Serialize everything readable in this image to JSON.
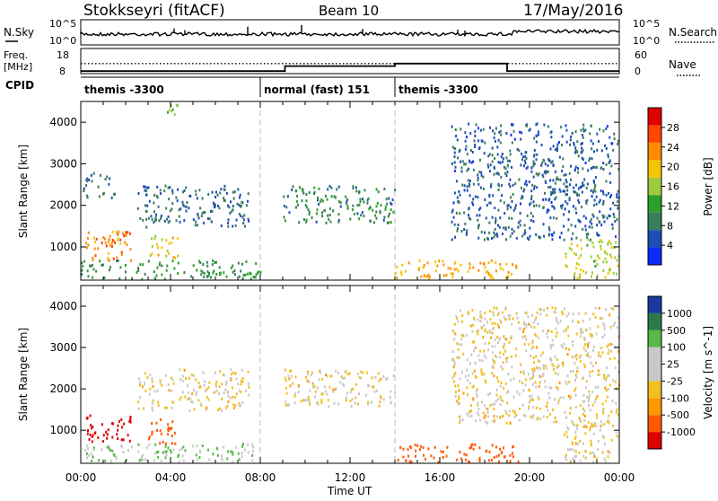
{
  "header": {
    "station": "Stokkseyri (fitACF)",
    "beam": "Beam 10",
    "date": "17/May/2016"
  },
  "aux_panel": {
    "nsky_label": "N.Sky",
    "nsky_ticks": [
      "10^5",
      "10^0"
    ],
    "nsearch_label": "N.Search",
    "freq_label": "Freq.",
    "freq_unit": "[MHz]",
    "freq_ticks": [
      "18",
      "8"
    ],
    "nave_label": "Nave",
    "nave_ticks": [
      "60",
      "0"
    ],
    "cpid_label": "CPID",
    "cpid_segments": [
      {
        "label": "themis -3300",
        "start_hour": 0,
        "end_hour": 8
      },
      {
        "label": "normal (fast) 151",
        "start_hour": 8,
        "end_hour": 14
      },
      {
        "label": "themis -3300",
        "start_hour": 14,
        "end_hour": 24
      }
    ],
    "nave_steps": [
      {
        "start_hour": 0,
        "end_hour": 9.1,
        "value": 6
      },
      {
        "start_hour": 9.1,
        "end_hour": 14,
        "value": 18
      },
      {
        "start_hour": 14,
        "end_hour": 19,
        "value": 24
      },
      {
        "start_hour": 19,
        "end_hour": 24,
        "value": 6
      }
    ],
    "freq_level_mhz": 12
  },
  "chart_data": [
    {
      "type": "heatmap",
      "title": "",
      "xlabel": "Time UT",
      "ylabel": "Slant Range [km]",
      "xlim_hours": [
        0,
        24
      ],
      "ylim_km": [
        200,
        4500
      ],
      "x_ticks": [
        "00:00",
        "04:00",
        "08:00",
        "12:00",
        "16:00",
        "20:00",
        "00:00"
      ],
      "y_ticks": [
        "1000",
        "2000",
        "3000",
        "4000"
      ],
      "colorbar": {
        "label": "Power [dB]",
        "ticks": [
          "4",
          "8",
          "12",
          "16",
          "20",
          "24",
          "28"
        ],
        "range": [
          0,
          30
        ]
      },
      "regions": [
        {
          "t0": 0.0,
          "t1": 8.0,
          "r0": 250,
          "r1": 700,
          "value": 10
        },
        {
          "t0": 0.2,
          "t1": 2.2,
          "r0": 700,
          "r1": 1400,
          "value": 22
        },
        {
          "t0": 3.0,
          "t1": 4.3,
          "r0": 700,
          "r1": 1300,
          "value": 18
        },
        {
          "t0": 0.0,
          "t1": 1.5,
          "r0": 2200,
          "r1": 2800,
          "value": 7
        },
        {
          "t0": 2.5,
          "t1": 7.5,
          "r0": 1500,
          "r1": 2500,
          "value": 7
        },
        {
          "t0": 3.8,
          "t1": 4.3,
          "r0": 4200,
          "r1": 4500,
          "value": 14
        },
        {
          "t0": 9.0,
          "t1": 14.0,
          "r0": 1600,
          "r1": 2500,
          "value": 9
        },
        {
          "t0": 14.0,
          "t1": 19.5,
          "r0": 250,
          "r1": 700,
          "value": 20
        },
        {
          "t0": 16.5,
          "t1": 24.0,
          "r0": 1200,
          "r1": 4000,
          "value": 6
        },
        {
          "t0": 21.5,
          "t1": 24.0,
          "r0": 250,
          "r1": 1200,
          "value": 16
        }
      ]
    },
    {
      "type": "heatmap",
      "title": "",
      "xlabel": "Time UT",
      "ylabel": "Slant Range [km]",
      "xlim_hours": [
        0,
        24
      ],
      "ylim_km": [
        200,
        4500
      ],
      "x_ticks": [
        "00:00",
        "04:00",
        "08:00",
        "12:00",
        "16:00",
        "20:00",
        "00:00"
      ],
      "y_ticks": [
        "1000",
        "2000",
        "3000",
        "4000"
      ],
      "colorbar": {
        "label": "Velocity [m s^-1]",
        "ticks": [
          "1000",
          "500",
          "100",
          "25",
          "-25",
          "-100",
          "-500",
          "-1000"
        ]
      },
      "regions": [
        {
          "t0": 0.0,
          "t1": 8.0,
          "r0": 250,
          "r1": 700,
          "value": 100
        },
        {
          "t0": 0.2,
          "t1": 2.2,
          "r0": 700,
          "r1": 1400,
          "value": -800
        },
        {
          "t0": 3.0,
          "t1": 4.3,
          "r0": 700,
          "r1": 1300,
          "value": -300
        },
        {
          "t0": 2.5,
          "t1": 7.5,
          "r0": 1500,
          "r1": 2500,
          "value": 0
        },
        {
          "t0": 9.0,
          "t1": 14.0,
          "r0": 1600,
          "r1": 2500,
          "value": 0
        },
        {
          "t0": 14.0,
          "t1": 19.5,
          "r0": 250,
          "r1": 700,
          "value": -150
        },
        {
          "t0": 16.5,
          "t1": 24.0,
          "r0": 1200,
          "r1": 4000,
          "value": 0
        },
        {
          "t0": 21.5,
          "t1": 24.0,
          "r0": 250,
          "r1": 1200,
          "value": 0
        }
      ]
    }
  ],
  "colors": {
    "power_scale": [
      "#0a2cff",
      "#1f4fb4",
      "#3a7d5c",
      "#2ca02c",
      "#9ccc3c",
      "#f5c400",
      "#ff8c00",
      "#ff4500",
      "#e00000"
    ],
    "velocity_scale": [
      "#e00000",
      "#ff5a00",
      "#ff9900",
      "#f0c020",
      "#c8c8c8",
      "#c8c8c8",
      "#58b848",
      "#2a7a4a",
      "#1a3aa0"
    ]
  }
}
